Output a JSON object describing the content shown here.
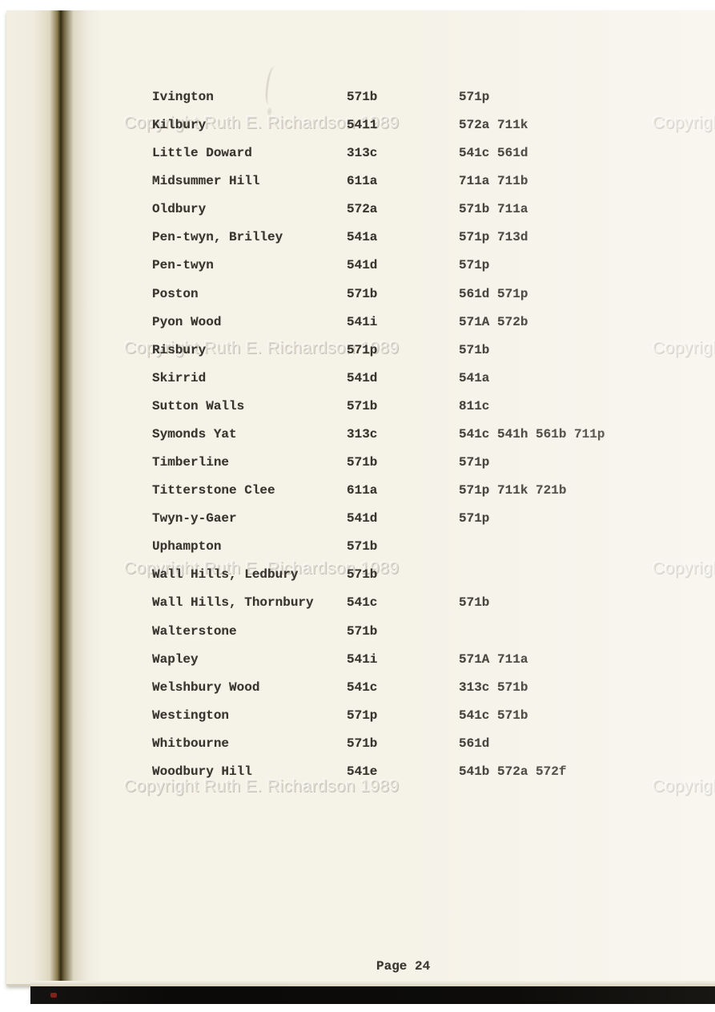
{
  "document": {
    "kind": "scanned typewritten book page",
    "watermark_text": "Copyright Ruth E. Richardson 1989",
    "footer": {
      "page_label": "Page 24"
    },
    "table": {
      "rows": [
        {
          "name": "Ivington",
          "code": "571b",
          "other_codes": "571p"
        },
        {
          "name": "Kilbury",
          "code": "5411",
          "other_codes": "572a 711k"
        },
        {
          "name": "Little Doward",
          "code": "313c",
          "other_codes": "541c 561d"
        },
        {
          "name": "Midsummer Hill",
          "code": "611a",
          "other_codes": "711a 711b"
        },
        {
          "name": "Oldbury",
          "code": "572a",
          "other_codes": "571b 711a"
        },
        {
          "name": "Pen-twyn, Brilley",
          "code": "541a",
          "other_codes": "571p 713d"
        },
        {
          "name": "Pen-twyn",
          "code": "541d",
          "other_codes": "571p"
        },
        {
          "name": "Poston",
          "code": "571b",
          "other_codes": "561d 571p"
        },
        {
          "name": "Pyon Wood",
          "code": "541i",
          "other_codes": "571A 572b"
        },
        {
          "name": "Risbury",
          "code": "571p",
          "other_codes": "571b"
        },
        {
          "name": "Skirrid",
          "code": "541d",
          "other_codes": "541a"
        },
        {
          "name": "Sutton Walls",
          "code": "571b",
          "other_codes": "811c"
        },
        {
          "name": "Symonds Yat",
          "code": "313c",
          "other_codes": "541c 541h 561b 711p"
        },
        {
          "name": "Timberline",
          "code": "571b",
          "other_codes": "571p"
        },
        {
          "name": "Titterstone Clee",
          "code": "611a",
          "other_codes": "571p 711k 721b"
        },
        {
          "name": "Twyn-y-Gaer",
          "code": "541d",
          "other_codes": "571p"
        },
        {
          "name": "Uphampton",
          "code": "571b",
          "other_codes": ""
        },
        {
          "name": "Wall Hills, Ledbury",
          "code": "571b",
          "other_codes": ""
        },
        {
          "name": "Wall Hills, Thornbury",
          "code": "541c",
          "other_codes": "571b"
        },
        {
          "name": "Walterstone",
          "code": "571b",
          "other_codes": ""
        },
        {
          "name": "Wapley",
          "code": "541i",
          "other_codes": "571A 711a"
        },
        {
          "name": "Welshbury Wood",
          "code": "541c",
          "other_codes": "313c 571b"
        },
        {
          "name": "Westington",
          "code": "571p",
          "other_codes": "541c 571b"
        },
        {
          "name": "Whitbourne",
          "code": "571b",
          "other_codes": "561d"
        },
        {
          "name": "Woodbury Hill",
          "code": "541e",
          "other_codes": "541b 572a 572f"
        }
      ]
    },
    "colors": {
      "paper": "#f5f2e8",
      "ink": "#38352e",
      "gutter_crease": "#332c12",
      "scan_bar": "#0d0c0a",
      "watermark": "#e3e0d6"
    }
  }
}
